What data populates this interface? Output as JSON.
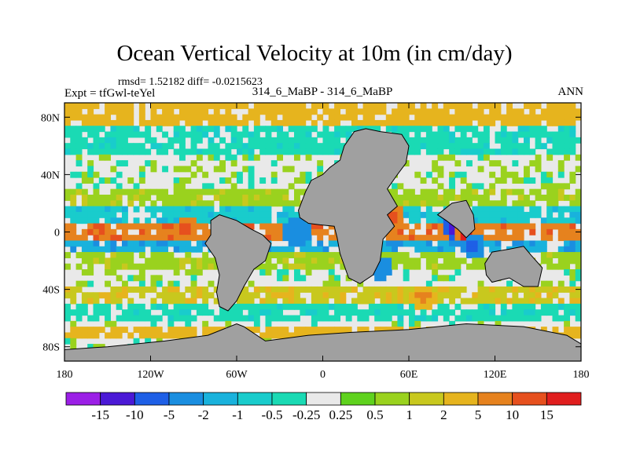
{
  "header": {
    "title": "Ocean Vertical Velocity at 10m (in cm/day)",
    "stats": "rmsd= 1.52182 diff= -0.0215623",
    "experiment": "Expt = tfGwl-teYel",
    "comparison": "314_6_MaBP - 314_6_MaBP",
    "season": "ANN"
  },
  "chart_data": {
    "type": "heatmap",
    "title": "Ocean Vertical Velocity at 10m (in cm/day)",
    "xlabel": "",
    "ylabel": "",
    "xlim": [
      -180,
      180
    ],
    "ylim": [
      -90,
      90
    ],
    "x_ticks": [
      {
        "value": -180,
        "label": "180"
      },
      {
        "value": -120,
        "label": "120W"
      },
      {
        "value": -60,
        "label": "60W"
      },
      {
        "value": 0,
        "label": "0"
      },
      {
        "value": 60,
        "label": "60E"
      },
      {
        "value": 120,
        "label": "120E"
      },
      {
        "value": 180,
        "label": "180"
      }
    ],
    "y_ticks": [
      {
        "value": 80,
        "label": "80N"
      },
      {
        "value": 40,
        "label": "40N"
      },
      {
        "value": 0,
        "label": "0"
      },
      {
        "value": -40,
        "label": "40S"
      },
      {
        "value": -80,
        "label": "80S"
      }
    ],
    "colorbar": {
      "labels": [
        "-15",
        "-10",
        "-5",
        "-2",
        "-1",
        "-0.5",
        "-0.25",
        "0.25",
        "0.5",
        "1",
        "2",
        "5",
        "10",
        "15"
      ],
      "colors": [
        "#9b1fe6",
        "#4b19d6",
        "#1e5fe6",
        "#1a8ee0",
        "#19b2dc",
        "#19cccc",
        "#1adab4",
        "#e9e9e9",
        "#5fd21e",
        "#9ad21e",
        "#c8c81e",
        "#e6b41e",
        "#e6821e",
        "#e6501e",
        "#e01e1e"
      ]
    },
    "land_color": "#a0a0a0",
    "bands": [
      {
        "lat_range": [
          75,
          90
        ],
        "value": 2
      },
      {
        "lat_range": [
          55,
          75
        ],
        "value": -0.5
      },
      {
        "lat_range": [
          20,
          30
        ],
        "value": 0.5
      },
      {
        "lat_range": [
          8,
          18
        ],
        "value": -1
      },
      {
        "lat_range": [
          -5,
          5
        ],
        "value": 5
      },
      {
        "lat_range": [
          -12,
          -5
        ],
        "value": -2
      },
      {
        "lat_range": [
          -25,
          -15
        ],
        "value": 0.5
      },
      {
        "lat_range": [
          -48,
          -38
        ],
        "value": 1
      },
      {
        "lat_range": [
          -62,
          -50
        ],
        "value": -0.5
      },
      {
        "lat_range": [
          -74,
          -66
        ],
        "value": 2
      }
    ],
    "hotspots": [
      {
        "lon": 92,
        "lat": 4,
        "value": -15
      },
      {
        "lon": 100,
        "lat": 0,
        "value": 15
      },
      {
        "lon": 105,
        "lat": -10,
        "value": -10
      },
      {
        "lon": 20,
        "lat": 38,
        "value": -10
      },
      {
        "lon": 48,
        "lat": 10,
        "value": 10
      },
      {
        "lon": -18,
        "lat": 0,
        "value": -5
      },
      {
        "lon": 40,
        "lat": -25,
        "value": -5
      },
      {
        "lon": 70,
        "lat": -45,
        "value": 5
      },
      {
        "lon": -95,
        "lat": 2,
        "value": 10
      }
    ]
  }
}
